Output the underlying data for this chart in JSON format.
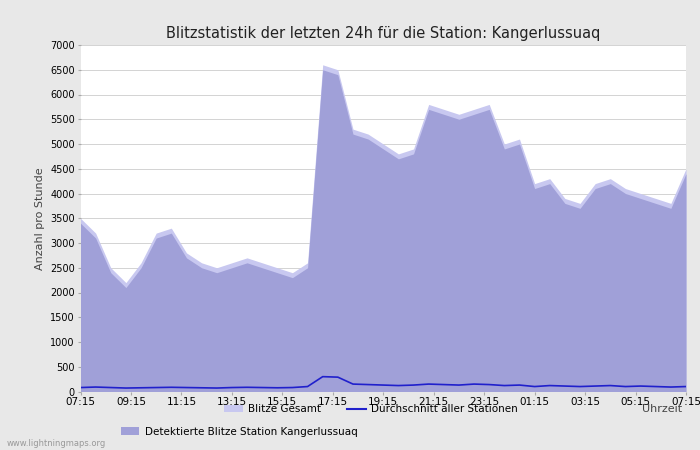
{
  "title": "Blitzstatistik der letzten 24h für die Station: Kangerlussuaq",
  "xlabel": "Uhrzeit",
  "ylabel": "Anzahl pro Stunde",
  "x_labels": [
    "07:15",
    "09:15",
    "11:15",
    "13:15",
    "15:15",
    "17:15",
    "19:15",
    "21:15",
    "23:15",
    "01:15",
    "03:15",
    "05:15",
    "07:15"
  ],
  "ylim": [
    0,
    7000
  ],
  "yticks": [
    0,
    500,
    1000,
    1500,
    2000,
    2500,
    3000,
    3500,
    4000,
    4500,
    5000,
    5500,
    6000,
    6500,
    7000
  ],
  "bg_color": "#e8e8e8",
  "plot_bg_color": "#ffffff",
  "fill_color_gesamt": "#c8c8f0",
  "fill_color_station": "#a0a0d8",
  "line_color_avg": "#2020cc",
  "gesamt_values": [
    3500,
    3200,
    2500,
    2200,
    2600,
    3200,
    3300,
    2800,
    2600,
    2500,
    2600,
    2700,
    2600,
    2500,
    2400,
    2600,
    6600,
    6500,
    5300,
    5200,
    5000,
    4800,
    4900,
    5800,
    5700,
    5600,
    5700,
    5800,
    5000,
    5100,
    4200,
    4300,
    3900,
    3800,
    4200,
    4300,
    4100,
    4000,
    3900,
    3800,
    4500
  ],
  "station_values": [
    3400,
    3100,
    2400,
    2100,
    2500,
    3100,
    3200,
    2700,
    2500,
    2400,
    2500,
    2600,
    2500,
    2400,
    2300,
    2500,
    6500,
    6400,
    5200,
    5100,
    4900,
    4700,
    4800,
    5700,
    5600,
    5500,
    5600,
    5700,
    4900,
    5000,
    4100,
    4200,
    3800,
    3700,
    4100,
    4200,
    4000,
    3900,
    3800,
    3700,
    4400
  ],
  "avg_values": [
    80,
    90,
    80,
    70,
    75,
    80,
    85,
    80,
    75,
    70,
    80,
    85,
    80,
    75,
    80,
    100,
    300,
    290,
    150,
    140,
    130,
    120,
    130,
    150,
    140,
    130,
    150,
    140,
    120,
    130,
    100,
    120,
    110,
    100,
    110,
    120,
    100,
    110,
    100,
    90,
    100
  ],
  "watermark": "www.lightningmaps.org",
  "legend_entries": [
    "Blitze Gesamt",
    "Detektierte Blitze Station Kangerlussuaq",
    "Durchschnitt aller Stationen"
  ],
  "figsize": [
    7.0,
    4.5
  ],
  "dpi": 100
}
